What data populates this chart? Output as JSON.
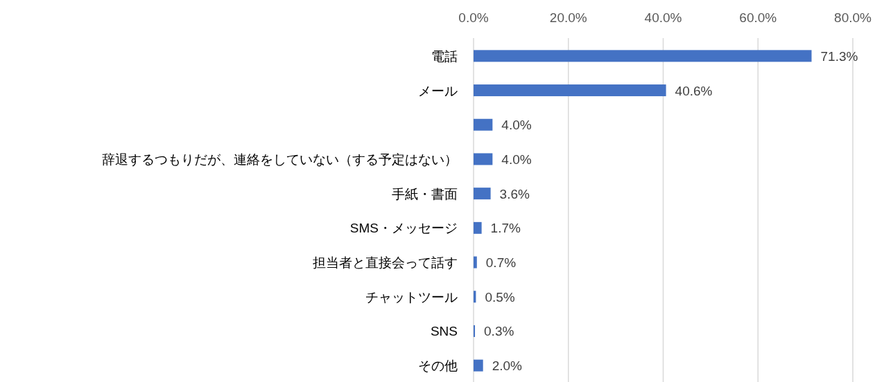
{
  "chart_data": {
    "type": "bar",
    "orientation": "horizontal",
    "categories": [
      "電話",
      "メール",
      null,
      "辞退するつもりだが、連絡をしていない（する予定はない）",
      "手紙・書面",
      "SMS・メッセージ",
      "担当者と直接会って話す",
      "チャットツール",
      "SNS",
      "その他"
    ],
    "values": [
      71.3,
      40.6,
      4.0,
      4.0,
      3.6,
      1.7,
      0.7,
      0.5,
      0.3,
      2.0
    ],
    "value_labels": [
      "71.3%",
      "40.6%",
      "4.0%",
      "4.0%",
      "3.6%",
      "1.7%",
      "0.7%",
      "0.5%",
      "0.3%",
      "2.0%"
    ],
    "color": "#4472c4",
    "xlim": [
      0,
      80
    ],
    "xticks": [
      {
        "value": 0,
        "label": "0.0%"
      },
      {
        "value": 20,
        "label": "20.0%"
      },
      {
        "value": 40,
        "label": "40.0%"
      },
      {
        "value": 60,
        "label": "60.0%"
      },
      {
        "value": 80,
        "label": "80.0%"
      }
    ],
    "grid": "x"
  }
}
